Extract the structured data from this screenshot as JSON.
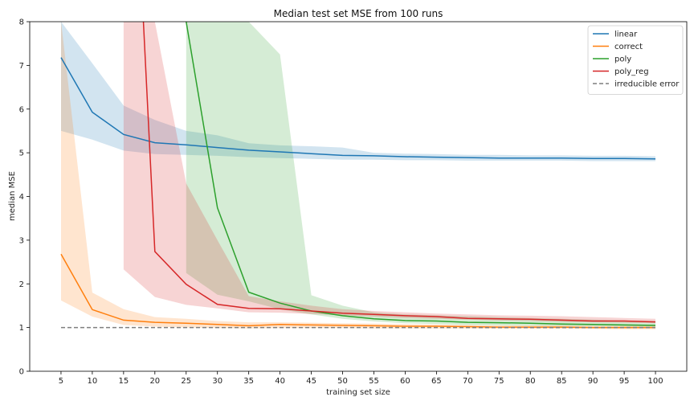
{
  "chart_data": {
    "type": "line",
    "title": "Median test set MSE from 100 runs",
    "xlabel": "training set size",
    "ylabel": "median MSE",
    "xlim": [
      0,
      105
    ],
    "ylim": [
      0,
      8
    ],
    "x": [
      5,
      10,
      15,
      20,
      25,
      30,
      35,
      40,
      45,
      50,
      55,
      60,
      65,
      70,
      75,
      80,
      85,
      90,
      95,
      100
    ],
    "xticks": [
      5,
      10,
      15,
      20,
      25,
      30,
      35,
      40,
      45,
      50,
      55,
      60,
      65,
      70,
      75,
      80,
      85,
      90,
      95,
      100
    ],
    "yticks": [
      0,
      1,
      2,
      3,
      4,
      5,
      6,
      7,
      8
    ],
    "grid": false,
    "legend_position": "top-right",
    "series": [
      {
        "name": "linear",
        "color": "#1f77b4",
        "values": [
          7.18,
          5.93,
          5.42,
          5.23,
          5.18,
          5.12,
          5.06,
          5.02,
          4.98,
          4.94,
          4.93,
          4.91,
          4.9,
          4.89,
          4.88,
          4.88,
          4.88,
          4.87,
          4.87,
          4.86
        ],
        "band_low": [
          5.5,
          5.3,
          5.05,
          4.97,
          4.95,
          4.93,
          4.9,
          4.88,
          4.86,
          4.84,
          4.84,
          4.83,
          4.83,
          4.82,
          4.82,
          4.82,
          4.82,
          4.81,
          4.81,
          4.81
        ],
        "band_high": [
          8.0,
          7.05,
          6.08,
          5.75,
          5.5,
          5.4,
          5.22,
          5.17,
          5.15,
          5.12,
          5.0,
          4.98,
          4.97,
          4.95,
          4.95,
          4.94,
          4.94,
          4.93,
          4.93,
          4.92
        ]
      },
      {
        "name": "correct",
        "color": "#ff7f0e",
        "values": [
          2.68,
          1.41,
          1.17,
          1.12,
          1.1,
          1.07,
          1.04,
          1.07,
          1.06,
          1.05,
          1.04,
          1.03,
          1.03,
          1.02,
          1.01,
          1.01,
          1.01,
          1.0,
          1.0,
          1.0
        ],
        "band_low": [
          1.62,
          1.25,
          1.06,
          1.02,
          1.0,
          0.99,
          0.98,
          0.99,
          0.99,
          0.99,
          0.98,
          0.98,
          0.98,
          0.98,
          0.97,
          0.97,
          0.97,
          0.97,
          0.96,
          0.96
        ],
        "band_high": [
          8.0,
          1.8,
          1.42,
          1.24,
          1.2,
          1.15,
          1.12,
          1.12,
          1.11,
          1.1,
          1.09,
          1.08,
          1.07,
          1.06,
          1.05,
          1.05,
          1.05,
          1.04,
          1.04,
          1.04
        ]
      },
      {
        "name": "poly",
        "color": "#2ca02c",
        "values": [
          null,
          null,
          null,
          null,
          8.0,
          3.74,
          1.81,
          1.56,
          1.38,
          1.27,
          1.2,
          1.16,
          1.15,
          1.12,
          1.11,
          1.1,
          1.08,
          1.07,
          1.06,
          1.05
        ],
        "band_low": [
          null,
          null,
          null,
          null,
          2.25,
          1.75,
          1.6,
          1.42,
          1.3,
          1.2,
          1.14,
          1.1,
          1.08,
          1.06,
          1.05,
          1.04,
          1.03,
          1.03,
          1.02,
          1.02
        ],
        "band_high": [
          null,
          null,
          null,
          null,
          8.0,
          8.0,
          8.0,
          7.25,
          1.74,
          1.5,
          1.35,
          1.3,
          1.28,
          1.26,
          1.24,
          1.22,
          1.2,
          1.18,
          1.16,
          1.15
        ]
      },
      {
        "name": "poly_reg",
        "color": "#d62728",
        "values": [
          null,
          null,
          null,
          2.74,
          1.99,
          1.53,
          1.44,
          1.43,
          1.38,
          1.33,
          1.3,
          1.27,
          1.25,
          1.21,
          1.2,
          1.19,
          1.17,
          1.15,
          1.15,
          1.13
        ],
        "band_low": [
          null,
          null,
          2.33,
          1.7,
          1.52,
          1.44,
          1.35,
          1.34,
          1.31,
          1.28,
          1.25,
          1.22,
          1.2,
          1.18,
          1.16,
          1.15,
          1.13,
          1.12,
          1.11,
          1.1
        ],
        "band_high": [
          null,
          null,
          null,
          8.0,
          4.3,
          3.0,
          1.72,
          1.6,
          1.5,
          1.42,
          1.38,
          1.35,
          1.32,
          1.3,
          1.28,
          1.27,
          1.26,
          1.24,
          1.22,
          1.2
        ]
      },
      {
        "name": "irreducible error",
        "color": "#7f7f7f",
        "dashed": true,
        "values": [
          1,
          1,
          1,
          1,
          1,
          1,
          1,
          1,
          1,
          1,
          1,
          1,
          1,
          1,
          1,
          1,
          1,
          1,
          1,
          1
        ]
      }
    ]
  }
}
